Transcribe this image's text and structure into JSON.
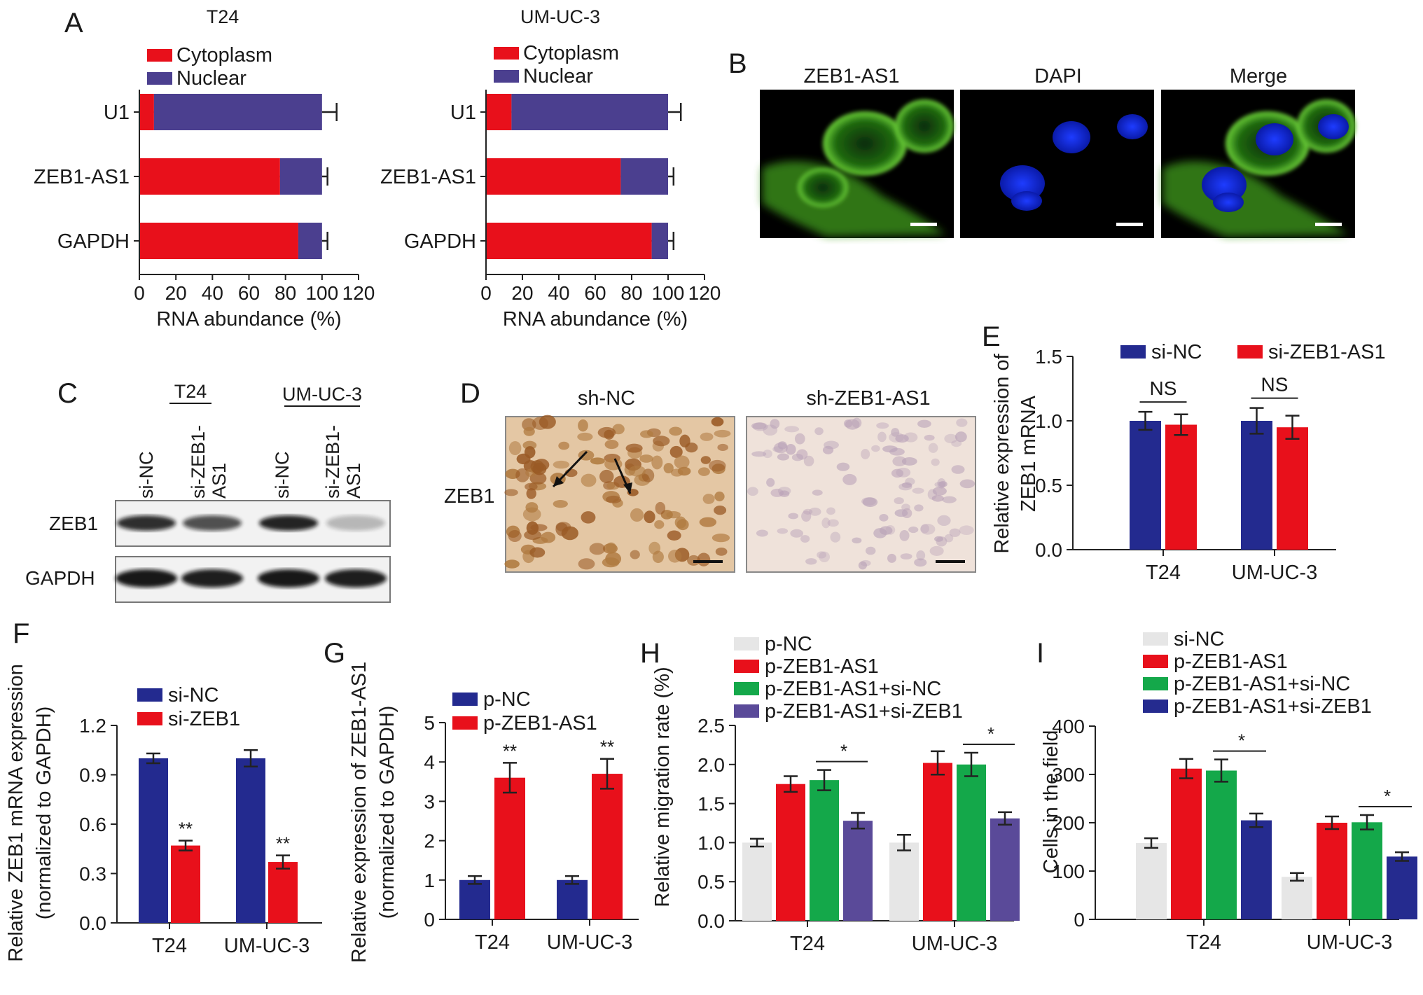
{
  "colors": {
    "cytoplasm": "#e8101b",
    "nuclear": "#4b3f8f",
    "si_nc_blue": "#232a8f",
    "red": "#e8101b",
    "green": "#14a84a",
    "purple": "#5a4a99",
    "navy": "#252b8f",
    "light_gray": "#e6e6e6"
  },
  "panel_letters": [
    "A",
    "B",
    "C",
    "D",
    "E",
    "F",
    "G",
    "H",
    "I"
  ],
  "chart_data": [
    {
      "panel": "A",
      "type": "bar",
      "orientation": "horizontal",
      "stacked": true,
      "title": "T24",
      "categories": [
        "U1",
        "ZEB1-AS1",
        "GAPDH"
      ],
      "series": [
        {
          "name": "Cytoplasm",
          "values": [
            8,
            77,
            87
          ],
          "err": [
            9,
            6,
            3
          ]
        },
        {
          "name": "Nuclear",
          "values": [
            92,
            23,
            13
          ],
          "err": [
            8,
            3,
            3
          ]
        }
      ],
      "xlabel": "RNA abundance (%)",
      "xlim": [
        0,
        120
      ],
      "xticks": [
        "0",
        "20",
        "40",
        "60",
        "80",
        "100",
        "120"
      ],
      "legend": "top-left"
    },
    {
      "panel": "A",
      "type": "bar",
      "orientation": "horizontal",
      "stacked": true,
      "title": "UM-UC-3",
      "categories": [
        "U1",
        "ZEB1-AS1",
        "GAPDH"
      ],
      "series": [
        {
          "name": "Cytoplasm",
          "values": [
            14,
            74,
            91
          ],
          "err": [
            2,
            5,
            3
          ]
        },
        {
          "name": "Nuclear",
          "values": [
            86,
            26,
            9
          ],
          "err": [
            7,
            3,
            3
          ]
        }
      ],
      "xlabel": "RNA abundance (%)",
      "xlim": [
        0,
        120
      ],
      "xticks": [
        "0",
        "20",
        "40",
        "60",
        "80",
        "100",
        "120"
      ],
      "legend": "top-left"
    },
    {
      "panel": "E",
      "type": "bar",
      "categories": [
        "T24",
        "UM-UC-3"
      ],
      "series": [
        {
          "name": "si-NC",
          "values": [
            1.0,
            1.0
          ],
          "err": [
            0.07,
            0.1
          ]
        },
        {
          "name": "si-ZEB1-AS1",
          "values": [
            0.97,
            0.95
          ],
          "err": [
            0.08,
            0.09
          ]
        }
      ],
      "significance": [
        "NS",
        "NS"
      ],
      "ylabel": "Relative expression of ZEB1 mRNA",
      "ylim": [
        0,
        1.5
      ],
      "yticks": [
        "0.0",
        "0.5",
        "1.0",
        "1.5"
      ],
      "legend": "top"
    },
    {
      "panel": "F",
      "type": "bar",
      "categories": [
        "T24",
        "UM-UC-3"
      ],
      "series": [
        {
          "name": "si-NC",
          "values": [
            1.0,
            1.0
          ],
          "err": [
            0.03,
            0.05
          ]
        },
        {
          "name": "si-ZEB1",
          "values": [
            0.47,
            0.37
          ],
          "err": [
            0.03,
            0.04
          ]
        }
      ],
      "significance": [
        "**",
        "**"
      ],
      "ylabel": "Relative ZEB1 mRNA expression (normalized to GAPDH)",
      "ylim": [
        0,
        1.2
      ],
      "yticks": [
        "0.0",
        "0.3",
        "0.6",
        "0.9",
        "1.2"
      ],
      "legend": "top-left"
    },
    {
      "panel": "G",
      "type": "bar",
      "categories": [
        "T24",
        "UM-UC-3"
      ],
      "series": [
        {
          "name": "p-NC",
          "values": [
            1.0,
            1.0
          ],
          "err": [
            0.1,
            0.1
          ]
        },
        {
          "name": "p-ZEB1-AS1",
          "values": [
            3.6,
            3.7
          ],
          "err": [
            0.38,
            0.38
          ]
        }
      ],
      "significance": [
        "**",
        "**"
      ],
      "ylabel": "Relative expression of ZEB1-AS1 (normalized to GAPDH)",
      "ylim": [
        0,
        5
      ],
      "yticks": [
        "0",
        "1",
        "2",
        "3",
        "4",
        "5"
      ],
      "legend": "top-left"
    },
    {
      "panel": "H",
      "type": "bar",
      "categories": [
        "T24",
        "UM-UC-3"
      ],
      "series": [
        {
          "name": "p-NC",
          "values": [
            1.0,
            1.0
          ],
          "err": [
            0.05,
            0.1
          ]
        },
        {
          "name": "p-ZEB1-AS1",
          "values": [
            1.75,
            2.02
          ],
          "err": [
            0.1,
            0.15
          ]
        },
        {
          "name": "p-ZEB1-AS1+si-NC",
          "values": [
            1.8,
            2.0
          ],
          "err": [
            0.13,
            0.15
          ]
        },
        {
          "name": "p-ZEB1-AS1+si-ZEB1",
          "values": [
            1.28,
            1.31
          ],
          "err": [
            0.1,
            0.08
          ]
        }
      ],
      "significance": [
        "*",
        "*"
      ],
      "ylabel": "Relative migration rate (%)",
      "ylim": [
        0,
        2.5
      ],
      "yticks": [
        "0.0",
        "0.5",
        "1.0",
        "1.5",
        "2.0",
        "2.5"
      ],
      "legend": "top-left"
    },
    {
      "panel": "I",
      "type": "bar",
      "categories": [
        "T24",
        "UM-UC-3"
      ],
      "series": [
        {
          "name": "si-NC",
          "values": [
            158,
            88
          ],
          "err": [
            10,
            8
          ]
        },
        {
          "name": "p-ZEB1-AS1",
          "values": [
            312,
            200
          ],
          "err": [
            20,
            13
          ]
        },
        {
          "name": "p-ZEB1-AS1+si-NC",
          "values": [
            308,
            201
          ],
          "err": [
            23,
            15
          ]
        },
        {
          "name": "p-ZEB1-AS1+si-ZEB1",
          "values": [
            205,
            130
          ],
          "err": [
            14,
            9
          ]
        }
      ],
      "significance": [
        "*",
        "*"
      ],
      "ylabel": "Cells in the field",
      "ylim": [
        0,
        400
      ],
      "yticks": [
        "0",
        "100",
        "200",
        "300",
        "400"
      ],
      "legend": "top-left"
    }
  ],
  "panel_B": {
    "labels": [
      "ZEB1-AS1",
      "DAPI",
      "Merge"
    ]
  },
  "panel_C": {
    "groups": [
      "T24",
      "UM-UC-3"
    ],
    "lanes": [
      "si-NC",
      "si-ZEB1-\nAS1",
      "si-NC",
      "si-ZEB1-\nAS1"
    ],
    "rows": [
      "ZEB1",
      "GAPDH"
    ],
    "zeb1_band_intensity": [
      0.85,
      0.7,
      0.9,
      0.25
    ],
    "gapdh_band_intensity": [
      0.95,
      0.92,
      0.95,
      0.92
    ]
  },
  "panel_D": {
    "labels": [
      "sh-NC",
      "sh-ZEB1-AS1"
    ],
    "row_label": "ZEB1"
  }
}
